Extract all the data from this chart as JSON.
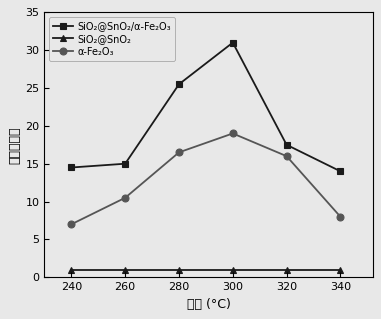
{
  "x": [
    240,
    260,
    280,
    300,
    320,
    340
  ],
  "series": [
    {
      "label": "SiO₂@SnO₂/α-Fe₂O₃",
      "values": [
        14.5,
        15.0,
        25.5,
        31.0,
        17.5,
        14.0
      ],
      "color": "#1a1a1a",
      "marker": "s",
      "markerfacecolor": "#1a1a1a",
      "linestyle": "-"
    },
    {
      "label": "SiO₂@SnO₂",
      "values": [
        1.0,
        1.0,
        1.0,
        1.0,
        1.0,
        1.0
      ],
      "color": "#1a1a1a",
      "marker": "^",
      "markerfacecolor": "#1a1a1a",
      "linestyle": "-"
    },
    {
      "label": "α-Fe₂O₃",
      "values": [
        7.0,
        10.5,
        16.5,
        19.0,
        16.0,
        8.0
      ],
      "color": "#555555",
      "marker": "o",
      "markerfacecolor": "#555555",
      "linestyle": "-"
    }
  ],
  "xlabel": "温度 (°C)",
  "ylabel": "气敏响应値",
  "ylim": [
    0,
    35
  ],
  "yticks": [
    0,
    5,
    10,
    15,
    20,
    25,
    30,
    35
  ],
  "xlim": [
    230,
    352
  ],
  "xticks": [
    240,
    260,
    280,
    300,
    320,
    340
  ],
  "background_color": "#e8e8e8",
  "plot_background": "#e8e8e8",
  "legend_loc": "upper left"
}
